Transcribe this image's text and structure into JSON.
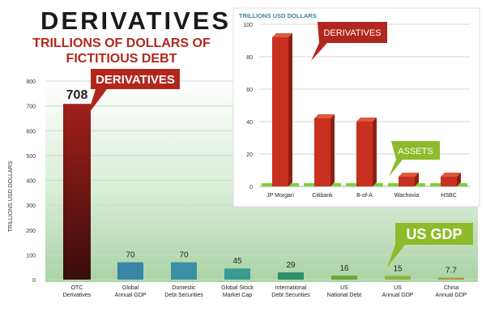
{
  "header": {
    "title": "DERIVATIVES",
    "subtitle_line1": "TRILLIONS OF DOLLARS OF",
    "subtitle_line2": "FICTITIOUS DEBT"
  },
  "colors": {
    "derivatives_red": "#8a1d17",
    "teal": "#3a8f95",
    "green": "#6aa23a",
    "gold": "#b59a2a",
    "callout_red": "#b2271d",
    "callout_green": "#8dbb2b",
    "inset_bar": "#c8311f"
  },
  "chart_data": [
    {
      "type": "bar",
      "ylabel": "TRILLIONS USD DOLLARS",
      "ylim": [
        0,
        800
      ],
      "yticks": [
        "0",
        "100",
        "200",
        "300",
        "400",
        "500",
        "600",
        "700",
        "800"
      ],
      "grid": true,
      "categories": [
        [
          "OTC",
          "Derivatives"
        ],
        [
          "Global",
          "Annual GDP"
        ],
        [
          "Domestic",
          "Debt Securities"
        ],
        [
          "Global Stock",
          "Market Cap"
        ],
        [
          "International",
          "Debt Securities"
        ],
        [
          "US",
          "National Debt"
        ],
        [
          "US",
          "Annual GDP"
        ],
        [
          "China",
          "Annual GDP"
        ]
      ],
      "values": [
        708,
        70,
        70,
        45,
        29,
        16,
        15,
        7.7
      ],
      "labels": [
        "708",
        "70",
        "70",
        "45",
        "29",
        "16",
        "15",
        "7.7"
      ],
      "bar_colors": [
        "#7a1a16",
        "#3a84a8",
        "#3a8fa4",
        "#3a9a92",
        "#2e8f6a",
        "#6aa23a",
        "#8fb33a",
        "#b59a2a"
      ],
      "callouts": [
        {
          "text": "DERIVATIVES",
          "color": "#b2271d"
        },
        {
          "text": "US GDP",
          "color": "#8dbb2b"
        }
      ]
    },
    {
      "type": "bar",
      "ylabel": "TRILLIONS USD DOLLARS",
      "ylim": [
        0,
        100
      ],
      "yticks": [
        "0",
        "20",
        "40",
        "60",
        "80",
        "100"
      ],
      "grid": true,
      "categories": [
        "JP Morgan",
        "Citibank",
        "B-of-A",
        "Wachovia",
        "HSBC"
      ],
      "series": [
        {
          "name": "DERIVATIVES",
          "values": [
            92,
            42,
            40,
            6,
            6
          ]
        },
        {
          "name": "ASSETS",
          "values": [
            2,
            2,
            2,
            2,
            2
          ]
        }
      ],
      "callouts": [
        {
          "text": "DERIVATIVES",
          "color": "#b2271d"
        },
        {
          "text": "ASSETS",
          "color": "#8dbb2b"
        }
      ]
    }
  ]
}
